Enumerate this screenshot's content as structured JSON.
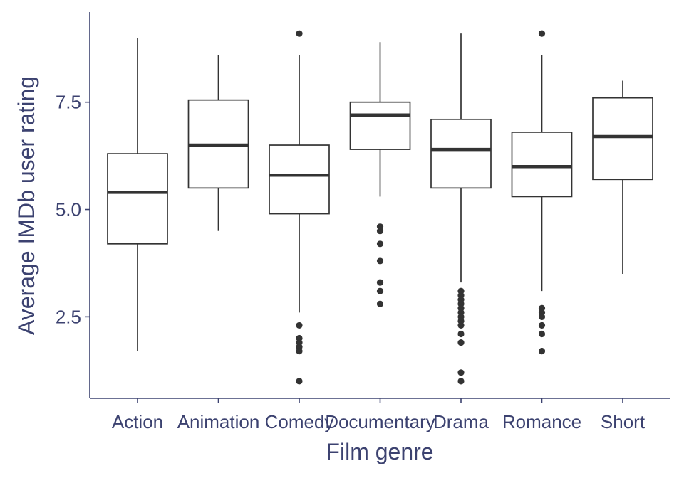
{
  "chart_data": {
    "type": "boxplot",
    "xlabel": "Film genre",
    "ylabel": "Average IMDb user rating",
    "ylim": [
      0.6,
      9.6
    ],
    "yticks": [
      2.5,
      5.0,
      7.5
    ],
    "ytick_labels": [
      "2.5",
      "5.0",
      "7.5"
    ],
    "grid": false,
    "categories": [
      "Action",
      "Animation",
      "Comedy",
      "Documentary",
      "Drama",
      "Romance",
      "Short"
    ],
    "boxes": [
      {
        "min": 1.7,
        "q1": 4.2,
        "median": 5.4,
        "q3": 6.3,
        "max": 9.0,
        "outliers": []
      },
      {
        "min": 4.5,
        "q1": 5.5,
        "median": 6.5,
        "q3": 7.55,
        "max": 8.6,
        "outliers": []
      },
      {
        "min": 2.6,
        "q1": 4.9,
        "median": 5.8,
        "q3": 6.5,
        "max": 8.6,
        "outliers": [
          2.3,
          2.0,
          1.9,
          1.8,
          1.7,
          1.0,
          9.1
        ]
      },
      {
        "min": 5.3,
        "q1": 6.4,
        "median": 7.2,
        "q3": 7.5,
        "max": 8.9,
        "outliers": [
          4.6,
          4.5,
          4.2,
          3.8,
          3.3,
          3.1,
          2.8
        ]
      },
      {
        "min": 3.3,
        "q1": 5.5,
        "median": 6.4,
        "q3": 7.1,
        "max": 9.1,
        "outliers": [
          3.1,
          3.0,
          2.9,
          2.8,
          2.7,
          2.6,
          2.5,
          2.4,
          2.3,
          2.1,
          1.9,
          1.2,
          1.0
        ]
      },
      {
        "min": 3.1,
        "q1": 5.3,
        "median": 6.0,
        "q3": 6.8,
        "max": 8.6,
        "outliers": [
          2.7,
          2.6,
          2.5,
          2.3,
          2.1,
          1.7,
          9.1
        ]
      },
      {
        "min": 3.5,
        "q1": 5.7,
        "median": 6.7,
        "q3": 7.6,
        "max": 8.0,
        "outliers": []
      }
    ]
  }
}
